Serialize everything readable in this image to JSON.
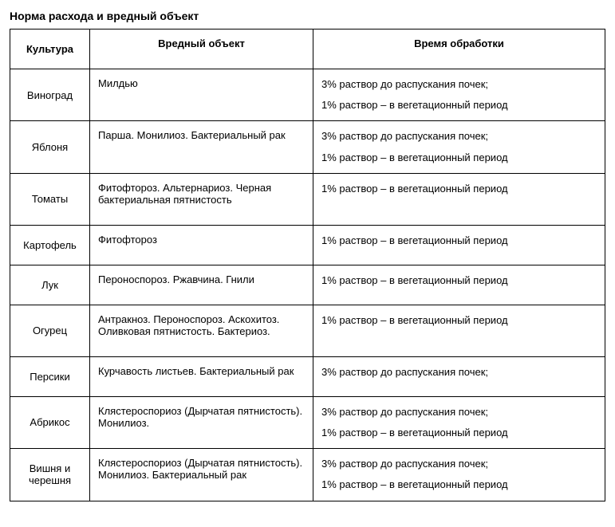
{
  "title": "Норма расхода и вредный объект",
  "columns": [
    "Культура",
    "Вредный объект",
    "Время обработки"
  ],
  "rows": [
    {
      "culture": "Виноград",
      "harm": "Милдью",
      "time": [
        "3% раствор до распускания почек;",
        "1% раствор – в вегетационный период"
      ]
    },
    {
      "culture": "Яблоня",
      "harm": "Парша. Монилиоз. Бактериальный рак",
      "time": [
        "3% раствор до распускания почек;",
        "1% раствор – в вегетационный период"
      ]
    },
    {
      "culture": "Томаты",
      "harm": "Фитофтороз. Альтернариоз. Черная бактериальная пятнистость",
      "time": [
        "1% раствор – в вегетационный период"
      ]
    },
    {
      "culture": "Картофель",
      "harm": "Фитофтороз",
      "time": [
        "1% раствор – в вегетационный период"
      ]
    },
    {
      "culture": "Лук",
      "harm": "Пероноспороз. Ржавчина.  Гнили",
      "time": [
        "1% раствор – в вегетационный период"
      ]
    },
    {
      "culture": "Огурец",
      "harm": "Антракноз. Пероноспороз. Аскохитоз. Оливковая пятнистость. Бактериоз.",
      "time": [
        "1% раствор – в вегетационный период"
      ]
    },
    {
      "culture": "Персики",
      "harm": "Курчавость листьев. Бактериальный  рак",
      "time": [
        "3% раствор до распускания почек;"
      ]
    },
    {
      "culture": "Абрикос",
      "harm": " Клястероспориоз (Дырчатая пятнистость). Монилиоз.",
      "time": [
        "3% раствор до распускания почек;",
        "1% раствор – в вегетационный период"
      ]
    },
    {
      "culture": "Вишня и черешня",
      "harm": "Клястероспориоз (Дырчатая пятнистость). Монилиоз. Бактериальный  рак",
      "time": [
        "3% раствор до распускания почек;",
        "1% раствор – в вегетационный период"
      ]
    }
  ]
}
